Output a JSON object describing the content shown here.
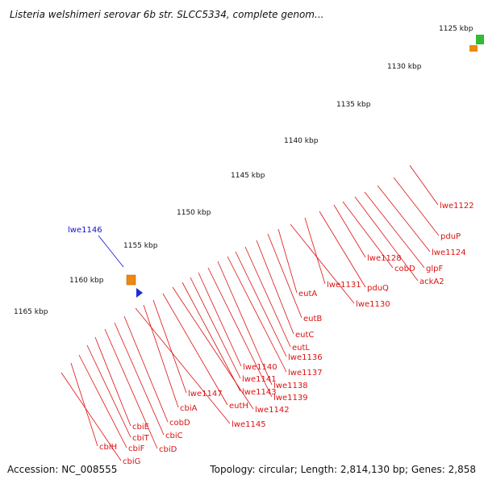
{
  "title": "Listeria welshimeri serovar 6b str. SLCC5334, complete genom...",
  "footer": {
    "accession": "Accession: NC_008555",
    "summary": "Topology: circular; Length: 2,814,130 bp; Genes: 2,858"
  },
  "colors": {
    "backbone": "#777777",
    "cds": "#ee1111",
    "label_red": "#dd1111",
    "label_blue": "#1111cc",
    "tick": "#2a8a2a",
    "dark_navy": "#0b1a7a",
    "blue": "#1a2fd6",
    "steel": "#4f7fb5",
    "cyan": "#22e4f2",
    "green": "#33bb33",
    "orange": "#ee8811",
    "gray_blue": "#5c6c92"
  },
  "scale": {
    "unit": "kbp",
    "labels": [
      "1125 kbp",
      "1130 kbp",
      "1135 kbp",
      "1140 kbp",
      "1145 kbp",
      "1150 kbp",
      "1155 kbp",
      "1160 kbp",
      "1165 kbp"
    ]
  },
  "genes": {
    "red": [
      "lwe1122",
      "pduP",
      "lwe1124",
      "glpF",
      "ackA2",
      "cobD",
      "lwe1128",
      "pduQ",
      "lwe1131",
      "lwe1130",
      "eutA",
      "eutB",
      "eutC",
      "eutL",
      "lwe1136",
      "lwe1137",
      "lwe1138",
      "lwe1139",
      "lwe1140",
      "lwe1141",
      "lwe1143",
      "lwe1142",
      "eutH",
      "lwe1147",
      "lwe1145",
      "cbiA",
      "cobD",
      "cbiC",
      "cbiD",
      "cbiE",
      "cbiT",
      "cbiF",
      "cbiH",
      "cbiG"
    ],
    "blue": [
      "lwe1146"
    ]
  }
}
